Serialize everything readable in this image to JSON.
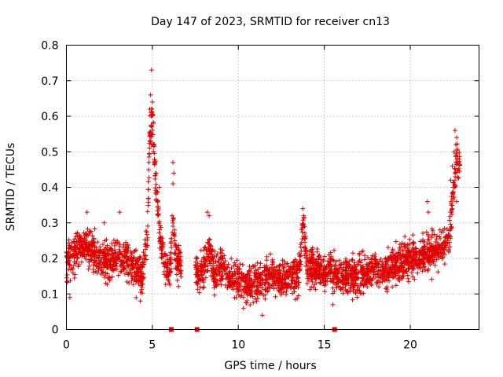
{
  "chart_data": {
    "type": "scatter",
    "title": "Day 147 of 2023, SRMTID for receiver cn13",
    "xlabel": "GPS time / hours",
    "ylabel": "SRMTID / TECUs",
    "xlim": [
      0,
      24
    ],
    "ylim": [
      0,
      0.8
    ],
    "xticks": [
      0,
      5,
      10,
      15,
      20
    ],
    "yticks": [
      0,
      0.1,
      0.2,
      0.3,
      0.4,
      0.5,
      0.6,
      0.7,
      0.8
    ],
    "grid": true,
    "marker": "+",
    "color": "#e00000",
    "series": [
      {
        "name": "SRMTID",
        "profile": [
          [
            0.0,
            0.18
          ],
          [
            0.5,
            0.22
          ],
          [
            1.0,
            0.24
          ],
          [
            1.5,
            0.22
          ],
          [
            2.0,
            0.2
          ],
          [
            2.5,
            0.19
          ],
          [
            3.0,
            0.2
          ],
          [
            3.5,
            0.2
          ],
          [
            4.0,
            0.17
          ],
          [
            4.4,
            0.16
          ],
          [
            4.7,
            0.25
          ],
          [
            4.85,
            0.55
          ],
          [
            5.0,
            0.6
          ],
          [
            5.2,
            0.4
          ],
          [
            5.5,
            0.25
          ],
          [
            5.8,
            0.17
          ],
          [
            6.0,
            0.15
          ],
          [
            6.2,
            0.3
          ],
          [
            6.4,
            0.2
          ],
          [
            6.6,
            0.19
          ],
          [
            7.6,
            0.15
          ],
          [
            8.0,
            0.17
          ],
          [
            8.3,
            0.24
          ],
          [
            8.6,
            0.16
          ],
          [
            9.0,
            0.17
          ],
          [
            9.5,
            0.14
          ],
          [
            10.0,
            0.14
          ],
          [
            10.5,
            0.13
          ],
          [
            11.0,
            0.13
          ],
          [
            11.5,
            0.14
          ],
          [
            12.0,
            0.15
          ],
          [
            12.5,
            0.14
          ],
          [
            13.0,
            0.15
          ],
          [
            13.5,
            0.15
          ],
          [
            13.8,
            0.3
          ],
          [
            14.0,
            0.17
          ],
          [
            14.5,
            0.17
          ],
          [
            15.0,
            0.16
          ],
          [
            15.5,
            0.16
          ],
          [
            16.0,
            0.15
          ],
          [
            16.5,
            0.15
          ],
          [
            17.0,
            0.15
          ],
          [
            17.5,
            0.16
          ],
          [
            18.0,
            0.17
          ],
          [
            18.5,
            0.17
          ],
          [
            19.0,
            0.18
          ],
          [
            19.5,
            0.19
          ],
          [
            20.0,
            0.2
          ],
          [
            20.5,
            0.2
          ],
          [
            21.0,
            0.22
          ],
          [
            21.5,
            0.22
          ],
          [
            22.0,
            0.24
          ],
          [
            22.3,
            0.26
          ],
          [
            22.5,
            0.4
          ],
          [
            22.7,
            0.48
          ],
          [
            22.9,
            0.45
          ]
        ],
        "spread": 0.05,
        "points_per_hour": 130,
        "x_range": [
          0.0,
          22.9
        ],
        "gaps": [
          [
            6.7,
            7.5
          ],
          [
            9.3,
            9.35
          ]
        ]
      }
    ],
    "highlights": [
      {
        "x": 4.95,
        "y": 0.73
      },
      {
        "x": 4.9,
        "y": 0.66
      },
      {
        "x": 5.0,
        "y": 0.64
      },
      {
        "x": 4.85,
        "y": 0.62
      },
      {
        "x": 5.05,
        "y": 0.58
      },
      {
        "x": 4.95,
        "y": 0.52
      },
      {
        "x": 4.8,
        "y": 0.47
      },
      {
        "x": 6.2,
        "y": 0.47
      },
      {
        "x": 6.25,
        "y": 0.44
      },
      {
        "x": 6.2,
        "y": 0.41
      },
      {
        "x": 6.15,
        "y": 0.32
      },
      {
        "x": 5.4,
        "y": 0.4
      },
      {
        "x": 5.3,
        "y": 0.36
      },
      {
        "x": 8.2,
        "y": 0.33
      },
      {
        "x": 8.3,
        "y": 0.32
      },
      {
        "x": 13.75,
        "y": 0.34
      },
      {
        "x": 13.8,
        "y": 0.32
      },
      {
        "x": 13.85,
        "y": 0.29
      },
      {
        "x": 22.6,
        "y": 0.56
      },
      {
        "x": 22.7,
        "y": 0.54
      },
      {
        "x": 22.65,
        "y": 0.52
      },
      {
        "x": 22.55,
        "y": 0.5
      },
      {
        "x": 22.45,
        "y": 0.46
      },
      {
        "x": 22.6,
        "y": 0.44
      },
      {
        "x": 22.35,
        "y": 0.42
      },
      {
        "x": 22.5,
        "y": 0.4
      },
      {
        "x": 22.7,
        "y": 0.36
      },
      {
        "x": 21.0,
        "y": 0.36
      },
      {
        "x": 21.05,
        "y": 0.33
      },
      {
        "x": 1.2,
        "y": 0.33
      },
      {
        "x": 3.1,
        "y": 0.33
      },
      {
        "x": 0.2,
        "y": 0.09
      },
      {
        "x": 4.3,
        "y": 0.08
      },
      {
        "x": 10.3,
        "y": 0.06
      },
      {
        "x": 11.4,
        "y": 0.04
      },
      {
        "x": 15.5,
        "y": 0.07
      },
      {
        "x": 2.2,
        "y": 0.3
      }
    ],
    "gap_markers": [
      6.1,
      7.6,
      15.6
    ],
    "gap_marker_y": 0
  }
}
